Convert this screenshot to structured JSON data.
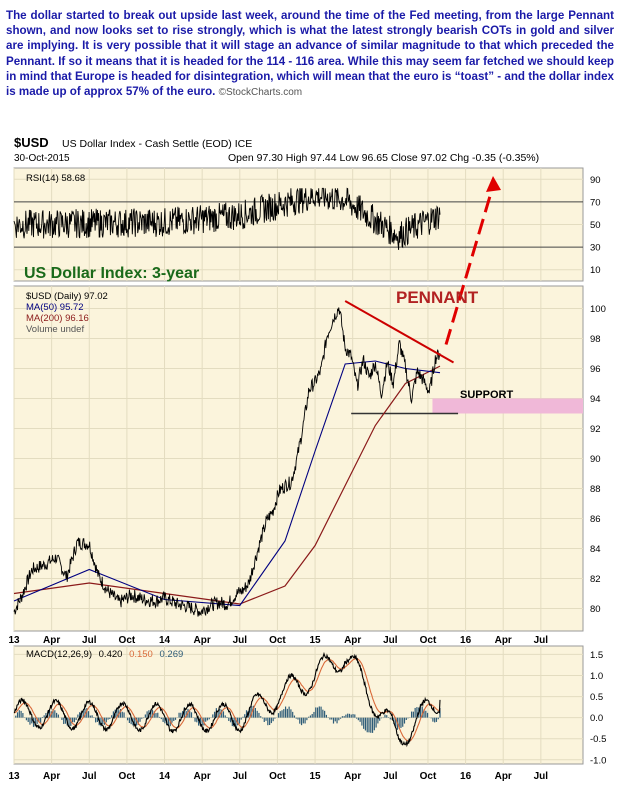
{
  "annotation": {
    "text": "The dollar started to break out upside last week, around the time of the Fed meeting, from the large Pennant shown, and now looks set to rise strongly, which is what the latest strongly bearish COTs in gold and silver are implying. It is very possible that it will stage an advance of similar magnitude to that which preceded the Pennant. If so it means that it is headed for the 114 - 116 area. While this may seem far fetched we should keep in mind that Europe is headed for disintegration, which will mean that the euro is “toast” - and the dollar index is made up of approx 57% of the euro.",
    "copyright": "©StockCharts.com"
  },
  "header": {
    "symbol": "$USD",
    "name": "US Dollar Index - Cash Settle (EOD) ICE",
    "date": "30-Oct-2015",
    "ohlc": "Open 97.30  High 97.44  Low 96.65  Close 97.02  Chg -0.35 (-0.35%)"
  },
  "colors": {
    "price": "#000000",
    "ma50": "#000080",
    "ma200": "#8b1a1a",
    "trendline": "#cc0000",
    "arrow": "#e00000",
    "support": "#f0b8d8",
    "panel": "#fbf4dc",
    "histogram": "#2e5c78",
    "signal": "#d96a3a",
    "chart_title": "#1a6a1a"
  },
  "chart_data": [
    {
      "type": "line",
      "panel": "RSI",
      "label": "RSI(14) 58.68",
      "ylim": [
        0,
        100
      ],
      "yticks": [
        10,
        30,
        50,
        70,
        90
      ],
      "values_approx": {
        "x": [
          "Jan 2013",
          "Jan 2014",
          "Jul 2014",
          "Jan 2015",
          "Mar 2015",
          "Jul 2015",
          "Oct 2015"
        ],
        "y": [
          50,
          52,
          58,
          76,
          72,
          40,
          58.68
        ]
      }
    },
    {
      "type": "line",
      "panel": "Price",
      "title": "US Dollar Index: 3-year",
      "legend": [
        "$USD (Daily) 97.02",
        "MA(50) 95.72",
        "MA(200) 96.16",
        "Volume undef"
      ],
      "ylim": [
        78.5,
        101.5
      ],
      "yticks": [
        80,
        82,
        84,
        86,
        88,
        90,
        92,
        94,
        96,
        98,
        100
      ],
      "xticks": [
        "13",
        "Apr",
        "Jul",
        "Oct",
        "14",
        "Apr",
        "Jul",
        "Oct",
        "15",
        "Apr",
        "Jul",
        "Oct",
        "16",
        "Apr",
        "Jul"
      ],
      "series": [
        {
          "name": "$USD (Daily)",
          "x": [
            2013.0,
            2013.05,
            2013.12,
            2013.2,
            2013.28,
            2013.35,
            2013.42,
            2013.5,
            2013.56,
            2013.62,
            2013.7,
            2013.78,
            2013.86,
            2013.94,
            2014.0,
            2014.08,
            2014.16,
            2014.24,
            2014.3,
            2014.36,
            2014.42,
            2014.48,
            2014.52,
            2014.56,
            2014.6,
            2014.64,
            2014.68,
            2014.72,
            2014.76,
            2014.8,
            2014.84,
            2014.88,
            2014.92,
            2014.96,
            2015.0,
            2015.04,
            2015.08,
            2015.12,
            2015.16,
            2015.2,
            2015.24,
            2015.28,
            2015.32,
            2015.36,
            2015.4,
            2015.44,
            2015.48,
            2015.52,
            2015.56,
            2015.6,
            2015.64,
            2015.68,
            2015.72,
            2015.76,
            2015.8,
            2015.83
          ],
          "y": [
            79.8,
            80.8,
            82.6,
            82.9,
            83.4,
            82.1,
            84.4,
            84.3,
            82.2,
            81.2,
            80.4,
            80.9,
            80.6,
            80.5,
            80.7,
            80.3,
            80.1,
            79.8,
            80.2,
            80.4,
            80.3,
            81.0,
            81.2,
            81.7,
            83.2,
            84.6,
            85.9,
            86.5,
            87.8,
            88.2,
            88.4,
            90.0,
            92.1,
            94.6,
            95.1,
            95.9,
            98.2,
            99.3,
            100.1,
            97.4,
            96.8,
            94.8,
            96.6,
            95.4,
            96.4,
            94.3,
            96.4,
            95.0,
            97.7,
            96.1,
            94.0,
            95.8,
            95.2,
            94.4,
            96.7,
            97.02
          ]
        },
        {
          "name": "MA(50)",
          "x": [
            2013.0,
            2013.5,
            2014.0,
            2014.5,
            2014.8,
            2015.0,
            2015.2,
            2015.4,
            2015.6,
            2015.83
          ],
          "y": [
            80.5,
            82.6,
            80.6,
            80.2,
            84.5,
            90.5,
            96.3,
            96.5,
            96.0,
            95.72
          ]
        },
        {
          "name": "MA(200)",
          "x": [
            2013.0,
            2013.5,
            2014.0,
            2014.5,
            2014.8,
            2015.0,
            2015.2,
            2015.4,
            2015.6,
            2015.83
          ],
          "y": [
            81.0,
            81.7,
            81.0,
            80.3,
            81.5,
            84.2,
            88.2,
            92.2,
            95.0,
            96.16
          ]
        }
      ],
      "annotations": [
        {
          "text": "PENNANT",
          "kind": "pattern-label"
        },
        {
          "text": "SUPPORT",
          "kind": "band",
          "y": [
            93.0,
            94.0
          ]
        },
        {
          "kind": "trendline",
          "x": [
            2015.2,
            2015.92
          ],
          "y": [
            100.5,
            96.4
          ]
        },
        {
          "kind": "projection-arrow",
          "note": "dashed upward arrow off chart"
        }
      ]
    },
    {
      "type": "line",
      "panel": "MACD",
      "label": [
        "MACD(12,26,9)",
        "0.420",
        "0.150",
        "0.269"
      ],
      "ylim": [
        -1.1,
        1.7
      ],
      "yticks": [
        -1.0,
        -0.5,
        0.0,
        0.5,
        1.0,
        1.5
      ],
      "values_approx": {
        "x": [
          "Jan 2013",
          "Jan 2014",
          "Jul 2014",
          "Jan 2015",
          "Mar 2015",
          "Jul 2015",
          "Oct 2015"
        ],
        "y": [
          0.1,
          0.0,
          0.0,
          1.0,
          1.5,
          -0.5,
          0.42
        ]
      }
    }
  ]
}
